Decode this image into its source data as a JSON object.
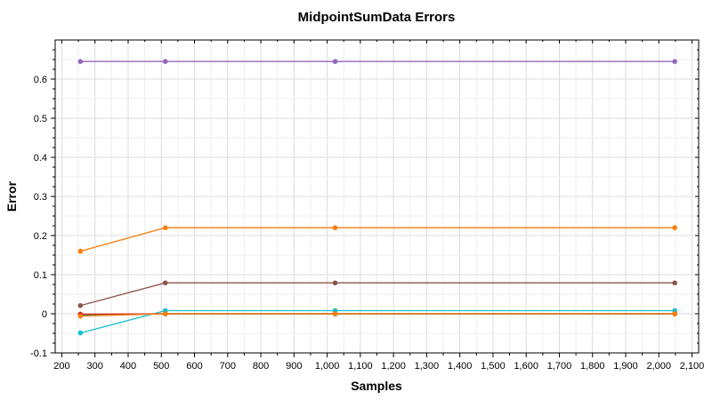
{
  "chart_data": {
    "type": "line",
    "title": "MidpointSumData Errors",
    "xlabel": "Samples",
    "ylabel": "Error",
    "xlim": [
      180,
      2120
    ],
    "ylim": [
      -0.1,
      0.7
    ],
    "x_ticks": [
      200,
      300,
      400,
      500,
      600,
      700,
      800,
      900,
      1000,
      1100,
      1200,
      1300,
      1400,
      1500,
      1600,
      1700,
      1800,
      1900,
      2000,
      2100
    ],
    "x_tick_labels": [
      "200",
      "300",
      "400",
      "500",
      "600",
      "700",
      "800",
      "900",
      "1,000",
      "1,100",
      "1,200",
      "1,300",
      "1,400",
      "1,500",
      "1,600",
      "1,700",
      "1,800",
      "1,900",
      "2,000",
      "2,100"
    ],
    "y_ticks": [
      -0.1,
      0,
      0.1,
      0.2,
      0.3,
      0.4,
      0.5,
      0.6
    ],
    "y_tick_labels": [
      "-0.1",
      "0",
      "0.1",
      "0.2",
      "0.3",
      "0.4",
      "0.5",
      "0.6"
    ],
    "grid": true,
    "legend": "none",
    "x": [
      256,
      512,
      1024,
      2048
    ],
    "series": [
      {
        "color": "#9467bd",
        "values": [
          0.645,
          0.645,
          0.645,
          0.645
        ]
      },
      {
        "color": "#ff7f0e",
        "values": [
          0.16,
          0.22,
          0.22,
          0.22
        ]
      },
      {
        "color": "#8c564b",
        "values": [
          0.021,
          0.079,
          0.079,
          0.079
        ]
      },
      {
        "color": "#17becf",
        "values": [
          -0.049,
          0.008,
          0.008,
          0.008
        ]
      },
      {
        "color": "#e377c2",
        "values": [
          -0.003,
          0.0,
          0.0,
          0.0
        ]
      },
      {
        "color": "#7f7f7f",
        "values": [
          -0.002,
          0.0,
          0.0,
          0.0
        ]
      },
      {
        "color": "#bcbd22",
        "values": [
          -0.001,
          0.0,
          0.0,
          0.0
        ]
      },
      {
        "color": "#1f77b4",
        "values": [
          -0.004,
          0.0,
          0.0,
          0.0
        ]
      },
      {
        "color": "#2ca02c",
        "values": [
          -0.002,
          0.0,
          0.0,
          0.0
        ]
      },
      {
        "color": "#d62728",
        "values": [
          -0.001,
          0.0,
          0.0,
          0.0
        ]
      },
      {
        "color": "#ff7f0e",
        "values": [
          -0.006,
          0.0,
          0.0,
          0.0
        ]
      }
    ]
  }
}
